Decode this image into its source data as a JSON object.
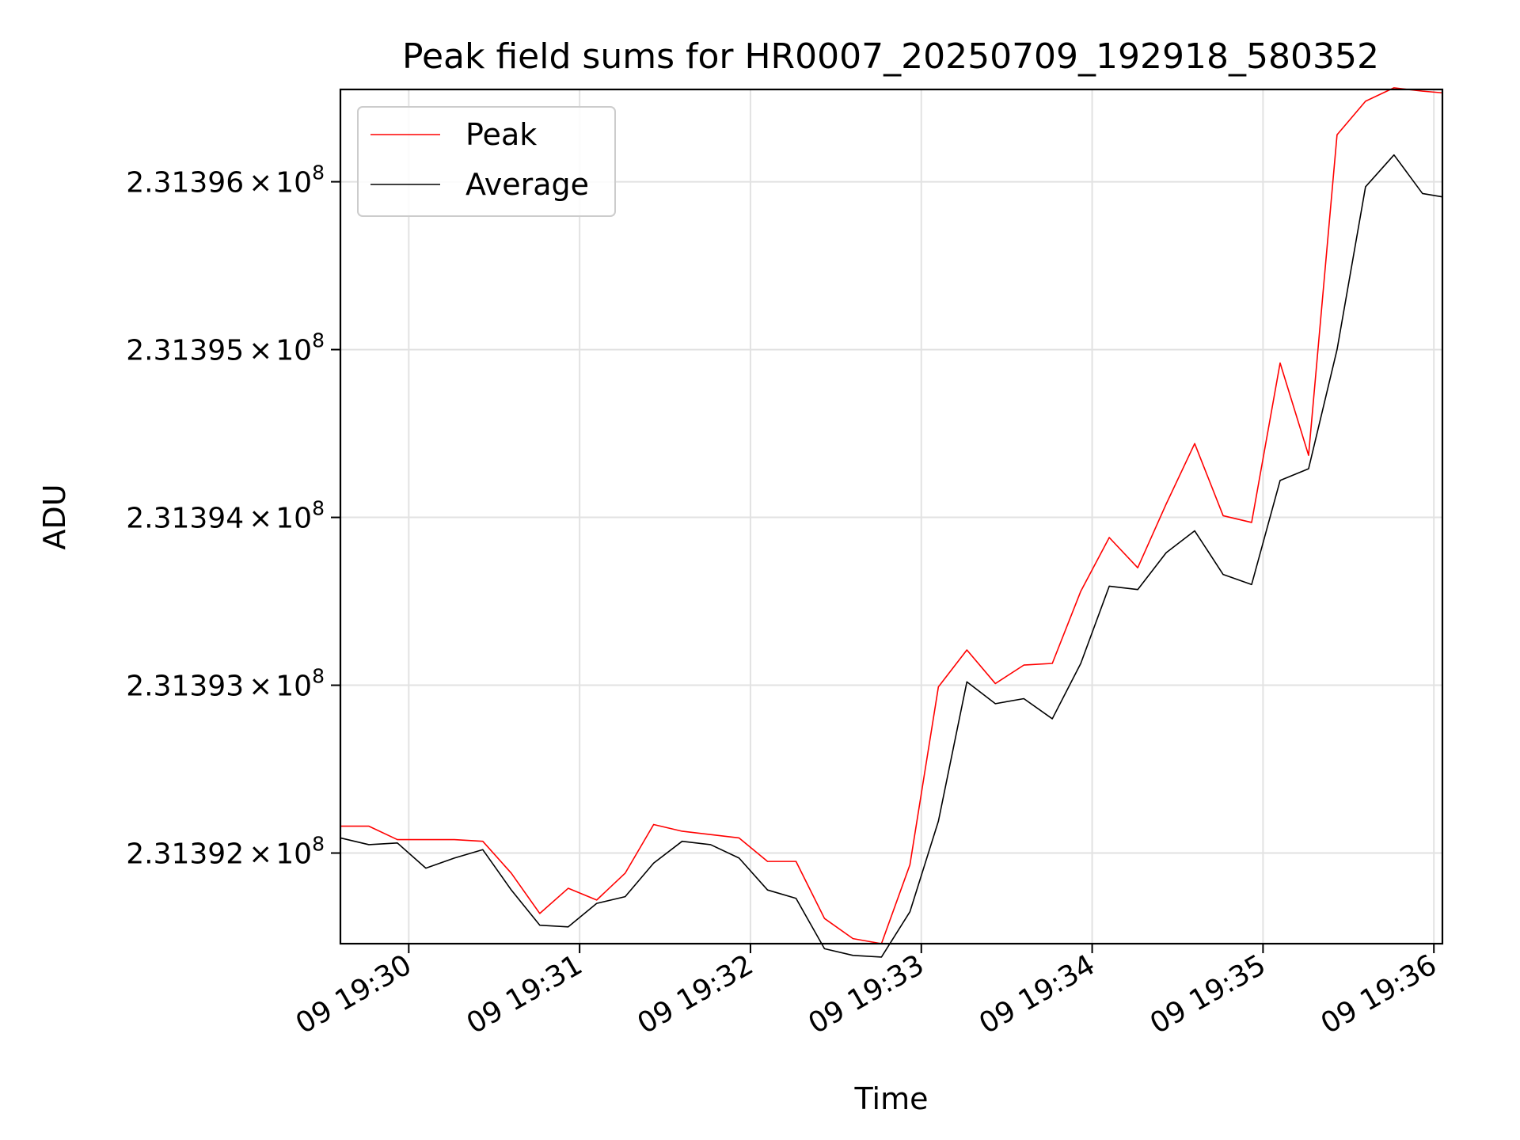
{
  "chart_data": {
    "type": "line",
    "title": "Peak field sums for HR0007_20250709_192918_580352",
    "xlabel": "Time",
    "ylabel": "ADU",
    "x_unit": "time",
    "xlim": [
      "2025-07-09 19:29:36",
      "2025-07-09 19:36:03"
    ],
    "ylim": [
      231391460,
      231396550
    ],
    "x_ticks": [
      "09 19:30",
      "09 19:31",
      "09 19:32",
      "09 19:33",
      "09 19:34",
      "09 19:35",
      "09 19:36"
    ],
    "y_ticks": [
      {
        "value": 231392000,
        "mantissa": "2.31392",
        "exp": "8"
      },
      {
        "value": 231393000,
        "mantissa": "2.31393",
        "exp": "8"
      },
      {
        "value": 231394000,
        "mantissa": "2.31394",
        "exp": "8"
      },
      {
        "value": 231395000,
        "mantissa": "2.31395",
        "exp": "8"
      },
      {
        "value": 231396000,
        "mantissa": "2.31396",
        "exp": "8"
      }
    ],
    "grid": true,
    "legend_position": "top-left",
    "x": [
      "19:29:36",
      "19:29:46",
      "19:29:56",
      "19:30:06",
      "19:30:16",
      "19:30:26",
      "19:30:36",
      "19:30:46",
      "19:30:56",
      "19:31:06",
      "19:31:16",
      "19:31:26",
      "19:31:36",
      "19:31:46",
      "19:31:56",
      "19:32:06",
      "19:32:16",
      "19:32:26",
      "19:32:36",
      "19:32:46",
      "19:32:56",
      "19:33:06",
      "19:33:16",
      "19:33:26",
      "19:33:36",
      "19:33:46",
      "19:33:56",
      "19:34:06",
      "19:34:16",
      "19:34:26",
      "19:34:36",
      "19:34:46",
      "19:34:56",
      "19:35:06",
      "19:35:16",
      "19:35:26",
      "19:35:36",
      "19:35:46",
      "19:35:56",
      "19:36:03"
    ],
    "series": [
      {
        "name": "Peak",
        "color": "#ff0000",
        "values": [
          231392160,
          231392160,
          231392080,
          231392080,
          231392080,
          231392070,
          231391880,
          231391640,
          231391790,
          231391720,
          231391880,
          231392170,
          231392130,
          231392110,
          231392090,
          231391950,
          231391950,
          231391610,
          231391490,
          231391460,
          231391930,
          231392990,
          231393210,
          231393010,
          231393120,
          231393130,
          231393560,
          231393880,
          231393700,
          231394080,
          231394440,
          231394010,
          231393970,
          231394920,
          231394370,
          231396280,
          231396480,
          231396560,
          231396540,
          231396530
        ]
      },
      {
        "name": "Average",
        "color": "#000000",
        "values": [
          231392090,
          231392050,
          231392060,
          231391910,
          231391970,
          231392020,
          231391780,
          231391570,
          231391560,
          231391700,
          231391740,
          231391940,
          231392070,
          231392050,
          231391970,
          231391780,
          231391730,
          231391430,
          231391390,
          231391380,
          231391650,
          231392190,
          231393020,
          231392890,
          231392920,
          231392800,
          231393130,
          231393590,
          231393570,
          231393790,
          231393920,
          231393660,
          231393600,
          231394220,
          231394290,
          231395000,
          231395970,
          231396160,
          231395930,
          231395910
        ]
      }
    ]
  }
}
